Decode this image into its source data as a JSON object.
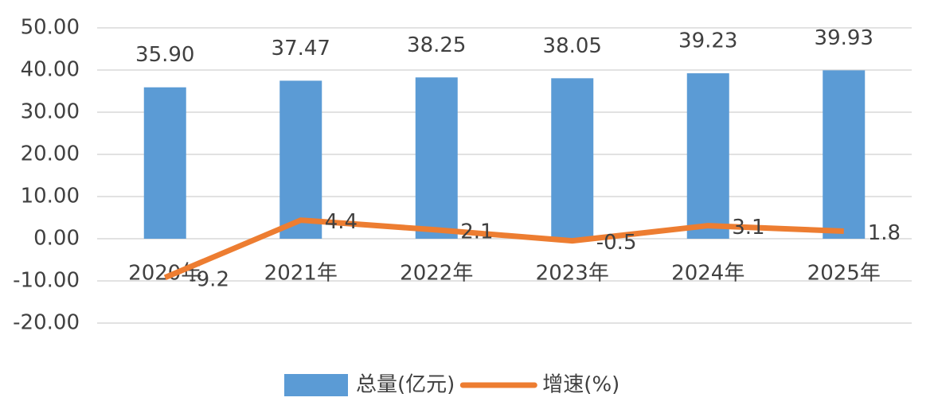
{
  "chart_data": {
    "type": "bar",
    "categories": [
      "2020年",
      "2021年",
      "2022年",
      "2023年",
      "2024年",
      "2025年"
    ],
    "series": [
      {
        "name": "总量(亿元)",
        "type": "bar",
        "color": "#5b9bd5",
        "values": [
          35.9,
          37.47,
          38.25,
          38.05,
          39.23,
          39.93
        ],
        "value_labels": [
          "35.90",
          "37.47",
          "38.25",
          "38.05",
          "39.23",
          "39.93"
        ]
      },
      {
        "name": "增速(%)",
        "type": "line",
        "color": "#ed7d31",
        "values": [
          -9.2,
          4.4,
          2.1,
          -0.5,
          3.1,
          1.8
        ]
      }
    ],
    "ylim": [
      -20,
      50
    ],
    "yticks": [
      {
        "value": -20,
        "label": "-20.00"
      },
      {
        "value": -10,
        "label": "-10.00"
      },
      {
        "value": 0,
        "label": "0.00"
      },
      {
        "value": 10,
        "label": "10.00"
      },
      {
        "value": 20,
        "label": "20.00"
      },
      {
        "value": 30,
        "label": "30.00"
      },
      {
        "value": 40,
        "label": "40.00"
      },
      {
        "value": 50,
        "label": "50.00"
      }
    ],
    "grid": true,
    "legend": "bottom"
  }
}
